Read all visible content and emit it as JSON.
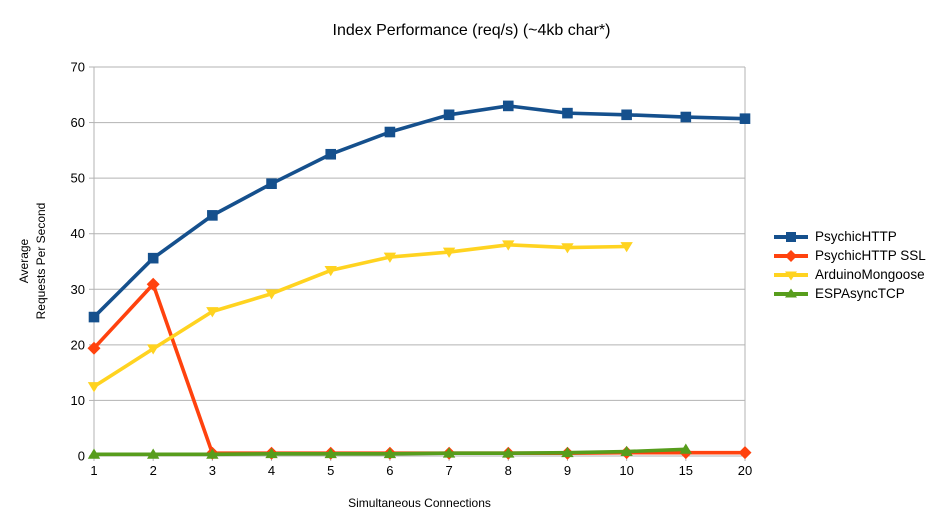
{
  "chart_data": {
    "type": "line",
    "title": "Index Performance (req/s) (~4kb char*)",
    "xlabel": "Simultaneous Connections",
    "ylabel_line1": "Average",
    "ylabel_line2": "Requests Per Second",
    "categories": [
      "1",
      "2",
      "3",
      "4",
      "5",
      "6",
      "7",
      "8",
      "9",
      "10",
      "15",
      "20"
    ],
    "ylim": [
      0,
      70
    ],
    "ytick_step": 10,
    "ytick_labels": [
      "0",
      "10",
      "20",
      "30",
      "40",
      "50",
      "60",
      "70"
    ],
    "grid": "horizontal",
    "legend_position": "right",
    "axis_color": "#b3b3b3",
    "grid_color": "#b3b3b3",
    "text_color": "#000000",
    "series": [
      {
        "name": "PsychicHTTP",
        "color": "#15508d",
        "marker": "square",
        "values": [
          25.0,
          35.6,
          43.3,
          49.0,
          54.3,
          58.3,
          61.4,
          63.0,
          61.7,
          61.4,
          61.0,
          60.7
        ]
      },
      {
        "name": "PsychicHTTP SSL",
        "color": "#ff420e",
        "marker": "diamond",
        "values": [
          19.4,
          30.9,
          0.5,
          0.5,
          0.5,
          0.5,
          0.5,
          0.5,
          0.5,
          0.6,
          0.6,
          0.6
        ]
      },
      {
        "name": "ArduinoMongoose",
        "color": "#ffd320",
        "marker": "triangle-down",
        "values": [
          12.5,
          19.3,
          26.0,
          29.2,
          33.4,
          35.8,
          36.7,
          38.0,
          37.5,
          37.7,
          null,
          null
        ]
      },
      {
        "name": "ESPAsyncTCP",
        "color": "#579d1c",
        "marker": "triangle-up",
        "values": [
          0.3,
          0.3,
          0.3,
          0.4,
          0.4,
          0.4,
          0.5,
          0.5,
          0.6,
          0.8,
          1.2,
          null
        ]
      }
    ]
  }
}
